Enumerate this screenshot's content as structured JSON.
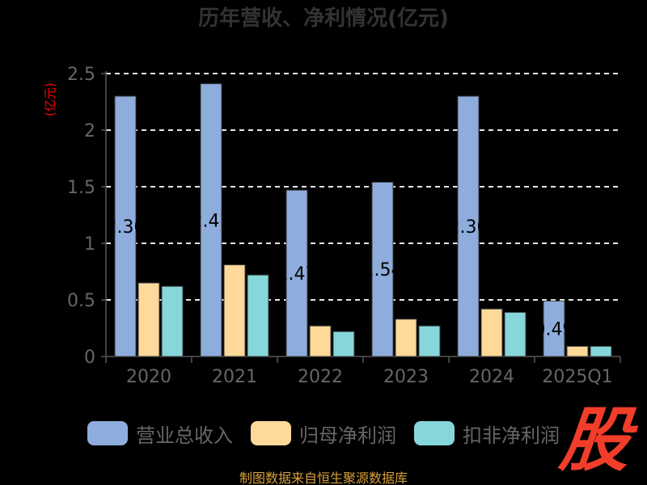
{
  "chart_data": {
    "type": "bar",
    "title": "历年营收、净利情况(亿元)",
    "y_unit_label": "(亿元)",
    "categories": [
      "2020",
      "2021",
      "2022",
      "2023",
      "2024",
      "2025Q1"
    ],
    "series": [
      {
        "name": "营业总收入",
        "color": "#8eaddc",
        "values": [
          2.3,
          2.41,
          1.47,
          1.54,
          2.3,
          0.49
        ],
        "labels": [
          "2.30",
          "2.41",
          "1.47",
          "1.54",
          "2.30",
          "0.49"
        ]
      },
      {
        "name": "归母净利润",
        "color": "#ffd99a",
        "values": [
          0.65,
          0.81,
          0.27,
          0.33,
          0.42,
          0.09
        ]
      },
      {
        "name": "扣非净利润",
        "color": "#86d7da",
        "values": [
          0.62,
          0.72,
          0.22,
          0.27,
          0.39,
          0.09
        ]
      }
    ],
    "ylim": [
      0,
      2.5
    ],
    "yticks": [
      "0",
      "0.5",
      "1",
      "1.5",
      "2",
      "2.5"
    ],
    "ytick_values": [
      0,
      0.5,
      1,
      1.5,
      2,
      2.5
    ],
    "grid": true,
    "legend_position": "bottom"
  },
  "logo": {
    "text": "股",
    "color": "#f23d2a"
  },
  "source_note": "制图数据来自恒生聚源数据库"
}
